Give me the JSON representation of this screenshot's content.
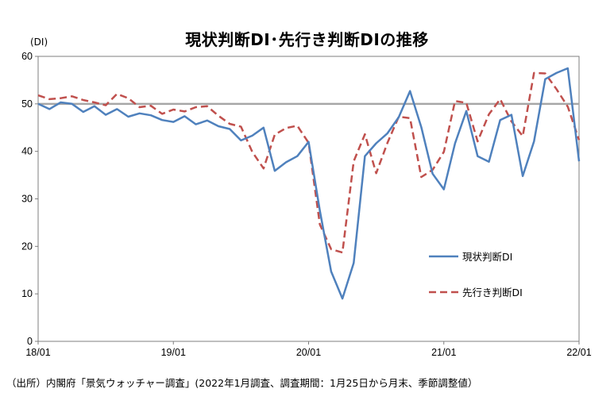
{
  "title": "現状判断DI･先行き判断DIの推移",
  "unit": "(DI)",
  "source": "（出所）内閣府「景気ウォッチャー調査」(2022年1月調査、調査期間：1月25日から月末、季節調整値）",
  "chart_data": {
    "type": "line",
    "x": [
      "18/01",
      "18/02",
      "18/03",
      "18/04",
      "18/05",
      "18/06",
      "18/07",
      "18/08",
      "18/09",
      "18/10",
      "18/11",
      "18/12",
      "19/01",
      "19/02",
      "19/03",
      "19/04",
      "19/05",
      "19/06",
      "19/07",
      "19/08",
      "19/09",
      "19/10",
      "19/11",
      "19/12",
      "20/01",
      "20/02",
      "20/03",
      "20/04",
      "20/05",
      "20/06",
      "20/07",
      "20/08",
      "20/09",
      "20/10",
      "20/11",
      "20/12",
      "21/01",
      "21/02",
      "21/03",
      "21/04",
      "21/05",
      "21/06",
      "21/07",
      "21/08",
      "21/09",
      "21/10",
      "21/11",
      "21/12",
      "22/01"
    ],
    "xticks": [
      "18/01",
      "19/01",
      "20/01",
      "21/01",
      "22/01"
    ],
    "ylim": [
      0,
      60
    ],
    "yticks": [
      0,
      10,
      20,
      30,
      40,
      50,
      60
    ],
    "reference_line": 50,
    "grid": false,
    "legend_position": "right",
    "series": [
      {
        "name": "現状判断DI",
        "color": "#4f81bd",
        "style": "solid",
        "values": [
          50.0,
          48.9,
          50.3,
          50.0,
          48.3,
          49.5,
          47.7,
          48.9,
          47.3,
          48.0,
          47.6,
          46.6,
          46.2,
          47.4,
          45.7,
          46.5,
          45.3,
          44.7,
          42.3,
          43.3,
          45.0,
          35.9,
          37.7,
          39.0,
          42.0,
          27.5,
          14.7,
          9.0,
          16.5,
          39.0,
          41.7,
          43.8,
          47.2,
          52.7,
          45.1,
          35.3,
          32.0,
          41.7,
          48.5,
          39.0,
          37.8,
          46.6,
          47.7,
          34.8,
          42.1,
          55.2,
          56.5,
          57.5,
          37.9
        ]
      },
      {
        "name": "先行き判断DI",
        "color": "#c0504d",
        "style": "dashed",
        "values": [
          51.8,
          51.0,
          51.2,
          51.6,
          50.8,
          50.3,
          49.7,
          52.1,
          51.2,
          49.3,
          49.6,
          47.9,
          48.8,
          48.4,
          49.3,
          49.5,
          47.5,
          45.8,
          45.2,
          39.9,
          36.4,
          43.5,
          44.9,
          45.4,
          41.8,
          24.6,
          19.4,
          18.7,
          37.9,
          43.6,
          35.4,
          41.8,
          47.3,
          47.0,
          34.6,
          36.1,
          39.9,
          50.6,
          50.2,
          42.1,
          47.8,
          51.0,
          46.3,
          43.2,
          56.5,
          56.4,
          53.1,
          49.4,
          42.4
        ]
      }
    ]
  }
}
